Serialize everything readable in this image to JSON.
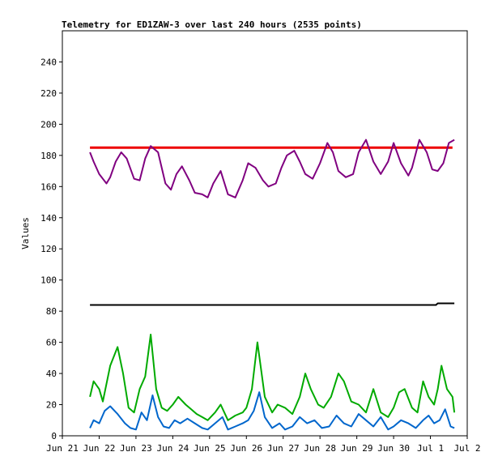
{
  "chart_data": {
    "type": "line",
    "title": "Telemetry for ED1ZAW-3 over last 240 hours (2535 points)",
    "xlabel": "",
    "ylabel": "Values",
    "xlim": [
      "Jun 21",
      "Jul 2"
    ],
    "ylim": [
      0,
      260
    ],
    "yticks": [
      0,
      20,
      40,
      60,
      80,
      100,
      120,
      140,
      160,
      180,
      200,
      220,
      240
    ],
    "xticks": [
      "Jun 21",
      "Jun 22",
      "Jun 23",
      "Jun 24",
      "Jun 25",
      "Jun 26",
      "Jun 27",
      "Jun 28",
      "Jun 29",
      "Jun 30",
      "Jul 1",
      "Jul 2"
    ],
    "grid": false,
    "legend": "none",
    "series": [
      {
        "color": "#ee0000",
        "x": [
          0.75,
          1.5,
          2.5,
          3.5,
          4.5,
          5.5,
          6.5,
          7.5,
          8.5,
          9.5,
          10.6
        ],
        "values": [
          185,
          185,
          185,
          185,
          185,
          185,
          185,
          185,
          185,
          185,
          185
        ]
      },
      {
        "color": "#800080",
        "x": [
          0.75,
          0.85,
          1.0,
          1.2,
          1.3,
          1.45,
          1.6,
          1.75,
          1.95,
          2.1,
          2.25,
          2.4,
          2.6,
          2.8,
          2.95,
          3.1,
          3.25,
          3.45,
          3.6,
          3.8,
          3.95,
          4.1,
          4.3,
          4.5,
          4.7,
          4.9,
          5.05,
          5.25,
          5.45,
          5.6,
          5.8,
          5.95,
          6.1,
          6.3,
          6.45,
          6.6,
          6.8,
          7.0,
          7.2,
          7.35,
          7.5,
          7.7,
          7.9,
          8.05,
          8.25,
          8.45,
          8.65,
          8.85,
          9.0,
          9.2,
          9.4,
          9.5,
          9.7,
          9.9,
          10.05,
          10.2,
          10.35,
          10.5,
          10.65
        ],
        "values": [
          182,
          176,
          168,
          162,
          166,
          176,
          182,
          178,
          165,
          164,
          178,
          186,
          182,
          162,
          158,
          168,
          173,
          164,
          156,
          155,
          153,
          162,
          170,
          155,
          153,
          164,
          175,
          172,
          164,
          160,
          162,
          172,
          180,
          183,
          176,
          168,
          165,
          175,
          188,
          182,
          170,
          166,
          168,
          182,
          190,
          176,
          168,
          176,
          188,
          175,
          167,
          172,
          190,
          182,
          171,
          170,
          175,
          188,
          190
        ]
      },
      {
        "color": "#000000",
        "x": [
          0.75,
          2.5,
          5.0,
          7.5,
          10.0,
          10.15,
          10.2,
          10.65
        ],
        "values": [
          84,
          84,
          84,
          84,
          84,
          84,
          85,
          85
        ]
      },
      {
        "color": "#00aa00",
        "x": [
          0.75,
          0.85,
          1.0,
          1.1,
          1.3,
          1.5,
          1.65,
          1.8,
          1.95,
          2.1,
          2.25,
          2.4,
          2.55,
          2.7,
          2.85,
          3.0,
          3.15,
          3.35,
          3.5,
          3.65,
          3.8,
          3.95,
          4.15,
          4.3,
          4.5,
          4.7,
          4.9,
          5.0,
          5.15,
          5.3,
          5.5,
          5.7,
          5.85,
          6.05,
          6.25,
          6.45,
          6.6,
          6.75,
          6.95,
          7.1,
          7.3,
          7.5,
          7.65,
          7.85,
          8.05,
          8.25,
          8.45,
          8.65,
          8.85,
          9.0,
          9.15,
          9.3,
          9.5,
          9.65,
          9.8,
          9.95,
          10.1,
          10.2,
          10.3,
          10.45,
          10.6,
          10.65
        ],
        "values": [
          25,
          35,
          30,
          22,
          45,
          57,
          40,
          18,
          15,
          30,
          38,
          65,
          30,
          18,
          16,
          20,
          25,
          20,
          17,
          14,
          12,
          10,
          15,
          20,
          10,
          13,
          15,
          18,
          30,
          60,
          25,
          15,
          20,
          18,
          14,
          25,
          40,
          30,
          20,
          18,
          25,
          40,
          35,
          22,
          20,
          15,
          30,
          15,
          12,
          18,
          28,
          30,
          18,
          15,
          35,
          25,
          20,
          30,
          45,
          30,
          25,
          15
        ]
      },
      {
        "color": "#0066cc",
        "x": [
          0.75,
          0.85,
          1.0,
          1.15,
          1.3,
          1.5,
          1.7,
          1.85,
          2.0,
          2.15,
          2.3,
          2.45,
          2.6,
          2.75,
          2.9,
          3.05,
          3.2,
          3.4,
          3.6,
          3.8,
          3.95,
          4.15,
          4.35,
          4.5,
          4.7,
          4.9,
          5.05,
          5.2,
          5.35,
          5.5,
          5.7,
          5.9,
          6.05,
          6.25,
          6.45,
          6.65,
          6.85,
          7.05,
          7.25,
          7.45,
          7.65,
          7.85,
          8.05,
          8.25,
          8.45,
          8.65,
          8.85,
          9.0,
          9.2,
          9.4,
          9.6,
          9.8,
          9.95,
          10.1,
          10.25,
          10.4,
          10.55,
          10.65
        ],
        "values": [
          5,
          10,
          8,
          16,
          19,
          14,
          8,
          5,
          4,
          15,
          10,
          26,
          12,
          6,
          5,
          10,
          8,
          11,
          8,
          5,
          4,
          8,
          12,
          4,
          6,
          8,
          10,
          16,
          28,
          12,
          5,
          8,
          4,
          6,
          12,
          8,
          10,
          5,
          6,
          13,
          8,
          6,
          14,
          10,
          6,
          12,
          4,
          6,
          10,
          8,
          5,
          10,
          13,
          8,
          10,
          17,
          6,
          5
        ]
      }
    ]
  }
}
